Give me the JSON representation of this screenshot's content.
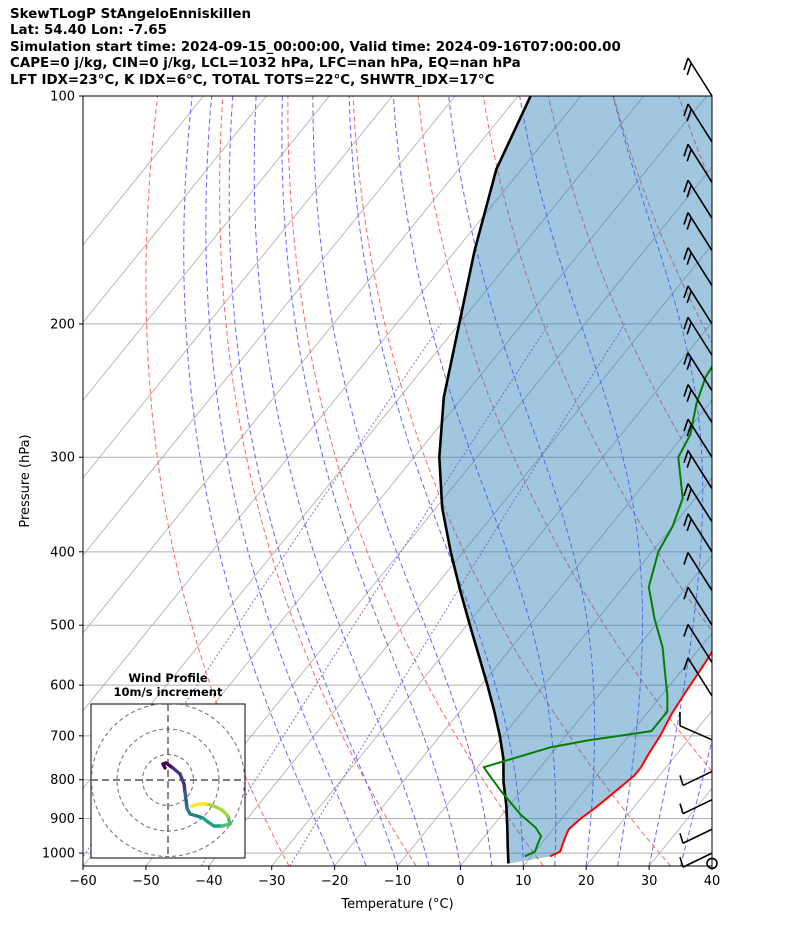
{
  "header": {
    "line1": "SkewTLogP StAngeloEnniskillen",
    "line2": "Lat: 54.40   Lon: -7.65",
    "line3": "Simulation start time: 2024-09-15_00:00:00, Valid time: 2024-09-16T07:00:00.00",
    "line4": "CAPE=0 j/kg, CIN=0 j/kg, LCL=1032 hPa, LFC=nan hPa, EQ=nan hPa",
    "line5": "LFT IDX=23°C, K IDX=6°C, TOTAL TOTS=22°C, SHWTR_IDX=17°C"
  },
  "chart_data": {
    "type": "line",
    "subtype": "skew-T log-P diagram",
    "xlabel": "Temperature (°C)",
    "ylabel": "Pressure (hPa)",
    "xlim": [
      -60,
      40
    ],
    "ylim": [
      1040,
      100
    ],
    "x_ticks": [
      -60,
      -50,
      -40,
      -30,
      -20,
      -10,
      0,
      10,
      20,
      30,
      40
    ],
    "x_tick_labels": [
      "−60",
      "−50",
      "−40",
      "−30",
      "−20",
      "−10",
      "0",
      "10",
      "20",
      "30",
      "40"
    ],
    "y_ticks": [
      1000,
      900,
      800,
      700,
      600,
      500,
      400,
      300,
      200,
      100
    ],
    "y_scale": "log",
    "grid": true,
    "colors": {
      "temperature": "#ff0000",
      "dewpoint": "#008000",
      "parcel": "#000000",
      "cape_fill": "#1f77b4",
      "dry_adiabat": "#ff6666",
      "moist_adiabat": "#6666ff",
      "mixing_ratio": "#9966cc",
      "isotherm": "#aaaaaa"
    },
    "series": [
      {
        "key": "temperature",
        "points": [
          [
            13,
            1010
          ],
          [
            14,
            995
          ],
          [
            13.5,
            975
          ],
          [
            13,
            955
          ],
          [
            12.5,
            930
          ],
          [
            13,
            900
          ],
          [
            14,
            870
          ],
          [
            15,
            830
          ],
          [
            16,
            790
          ],
          [
            16,
            770
          ],
          [
            15.5,
            740
          ],
          [
            15,
            700
          ],
          [
            14,
            655
          ],
          [
            13.5,
            620
          ],
          [
            13,
            580
          ],
          [
            12.5,
            545
          ],
          [
            11,
            500
          ],
          [
            9,
            450
          ],
          [
            6,
            390
          ],
          [
            2,
            335
          ],
          [
            0,
            310
          ],
          [
            -5,
            270
          ],
          [
            -11,
            225
          ],
          [
            -15,
            200
          ],
          [
            -18,
            185
          ],
          [
            -20,
            168
          ],
          [
            -22,
            150
          ],
          [
            -24,
            137
          ],
          [
            -25,
            130
          ],
          [
            -26,
            122
          ],
          [
            -27,
            113
          ],
          [
            -28,
            104
          ],
          [
            -28,
            100
          ]
        ]
      },
      {
        "key": "dewpoint",
        "points": [
          [
            9,
            1010
          ],
          [
            10,
            995
          ],
          [
            9.5,
            975
          ],
          [
            9,
            950
          ],
          [
            7,
            925
          ],
          [
            3,
            890
          ],
          [
            -3,
            830
          ],
          [
            -7,
            790
          ],
          [
            -9,
            770
          ],
          [
            -1,
            725
          ],
          [
            4,
            710
          ],
          [
            13,
            690
          ],
          [
            13,
            650
          ],
          [
            11,
            620
          ],
          [
            7,
            570
          ],
          [
            4,
            535
          ],
          [
            -1,
            490
          ],
          [
            -6,
            445
          ],
          [
            -9,
            400
          ],
          [
            -10,
            370
          ],
          [
            -12,
            340
          ],
          [
            -18,
            300
          ],
          [
            -19,
            280
          ],
          [
            -22,
            255
          ],
          [
            -24,
            235
          ],
          [
            -25,
            210
          ],
          [
            -27,
            195
          ],
          [
            -31,
            180
          ],
          [
            -35,
            170
          ],
          [
            -35,
            160
          ],
          [
            -35,
            150
          ],
          [
            -35,
            140
          ],
          [
            -35,
            135
          ],
          [
            -39,
            125
          ],
          [
            -40,
            117
          ],
          [
            -41,
            111
          ]
        ]
      },
      {
        "key": "parcel",
        "points": [
          [
            7.3,
            1032
          ],
          [
            5,
            980
          ],
          [
            2.5,
            925
          ],
          [
            -0.5,
            865
          ],
          [
            -4,
            805
          ],
          [
            -7,
            750
          ],
          [
            -10.5,
            700
          ],
          [
            -14.5,
            650
          ],
          [
            -19,
            600
          ],
          [
            -24,
            550
          ],
          [
            -29.5,
            500
          ],
          [
            -35.5,
            450
          ],
          [
            -42,
            400
          ],
          [
            -49,
            350
          ],
          [
            -56,
            300
          ],
          [
            -63,
            250
          ],
          [
            -70,
            200
          ],
          [
            -77,
            160
          ],
          [
            -84,
            125
          ],
          [
            -88,
            100
          ]
        ]
      }
    ],
    "wind_barbs": {
      "pressures_hPa": [
        100,
        115,
        130,
        145,
        160,
        178,
        200,
        220,
        245,
        270,
        300,
        330,
        365,
        400,
        450,
        500,
        560,
        620,
        700,
        780,
        850,
        930,
        1000,
        1032
      ]
    },
    "inset": {
      "title": "Wind Profile",
      "subtitle": "10m/s increment",
      "type": "hodograph",
      "rings": [
        10,
        20,
        30
      ],
      "rings_unit": "m/s"
    }
  }
}
